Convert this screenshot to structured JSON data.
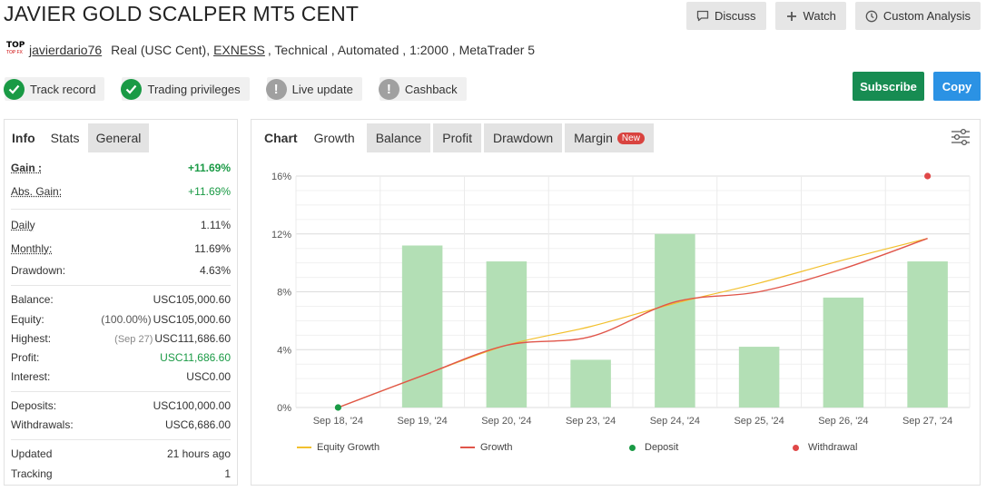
{
  "header": {
    "title": "JAVIER GOLD SCALPER MT5 CENT",
    "discuss": "Discuss",
    "watch": "Watch",
    "custom_analysis": "Custom Analysis"
  },
  "account": {
    "logo_line1": "TOP",
    "logo_line2": "TOP FX",
    "user": "javierdario76",
    "type": "Real (USC Cent),",
    "broker": "EXNESS",
    "details": ", Technical , Automated , 1:2000 , MetaTrader 5"
  },
  "badges": [
    {
      "label": "Track record",
      "status": "ok"
    },
    {
      "label": "Trading privileges",
      "status": "ok"
    },
    {
      "label": "Live update",
      "status": "na"
    },
    {
      "label": "Cashback",
      "status": "na"
    }
  ],
  "actions": {
    "subscribe": "Subscribe",
    "copy": "Copy"
  },
  "info": {
    "tabs": {
      "label": "Info",
      "active": "Stats",
      "other": "General"
    },
    "gain": {
      "label": "Gain :",
      "value": "+11.69%"
    },
    "abs_gain": {
      "label": "Abs. Gain:",
      "value": "+11.69%"
    },
    "daily": {
      "label": "Daily",
      "value": "1.11%"
    },
    "monthly": {
      "label": "Monthly:",
      "value": "11.69%"
    },
    "drawdown": {
      "label": "Drawdown:",
      "value": "4.63%"
    },
    "balance": {
      "label": "Balance:",
      "value": "USC105,000.60"
    },
    "equity": {
      "label": "Equity:",
      "prefix": "(100.00%)",
      "value": "USC105,000.60"
    },
    "highest": {
      "label": "Highest:",
      "prefix": "(Sep 27)",
      "value": "USC111,686.60"
    },
    "profit": {
      "label": "Profit:",
      "value": "USC11,686.60"
    },
    "interest": {
      "label": "Interest:",
      "value": "USC0.00"
    },
    "deposits": {
      "label": "Deposits:",
      "value": "USC100,000.00"
    },
    "withdrawals": {
      "label": "Withdrawals:",
      "value": "USC6,686.00"
    },
    "updated": {
      "label": "Updated",
      "value": "21 hours ago"
    },
    "tracking": {
      "label": "Tracking",
      "value": "1"
    }
  },
  "chart_tabs": {
    "label": "Chart",
    "growth": "Growth",
    "balance": "Balance",
    "profit": "Profit",
    "drawdown": "Drawdown",
    "margin": "Margin",
    "margin_badge": "New"
  },
  "chart_data": {
    "type": "bar",
    "categories": [
      "Sep 18, '24",
      "Sep 19, '24",
      "Sep 20, '24",
      "Sep 23, '24",
      "Sep 24, '24",
      "Sep 25, '24",
      "Sep 26, '24",
      "Sep 27, '24"
    ],
    "ylim": [
      0,
      16
    ],
    "yticks": [
      "0%",
      "4%",
      "8%",
      "12%",
      "16%"
    ],
    "grid": true,
    "bars": [
      null,
      11.2,
      10.1,
      3.3,
      12.0,
      4.2,
      7.6,
      10.1
    ],
    "series": [
      {
        "name": "Equity Growth",
        "values": [
          0,
          2.2,
          4.3,
          5.6,
          7.2,
          8.6,
          10.2,
          11.69
        ],
        "color": "#f2c02e"
      },
      {
        "name": "Growth",
        "values": [
          0,
          2.2,
          4.3,
          4.9,
          7.3,
          8.0,
          9.6,
          11.69
        ],
        "color": "#e0554a"
      }
    ],
    "deposit": {
      "name": "Deposit",
      "category": "Sep 18, '24",
      "value": 0,
      "color": "#1a9a45"
    },
    "withdrawal": {
      "name": "Withdrawal",
      "category": "Sep 27, '24",
      "value": 16,
      "color": "#e04848"
    },
    "bar_color": "#b3dfb5",
    "legend_position": "bottom"
  }
}
